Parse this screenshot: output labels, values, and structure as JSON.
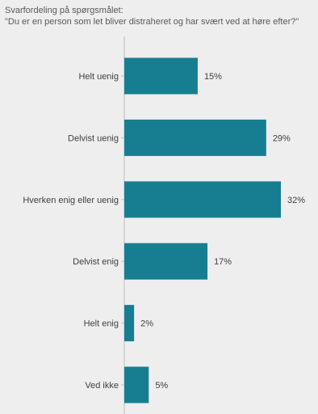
{
  "chart_data": {
    "type": "bar",
    "orientation": "horizontal",
    "title": "Svarfordeling på spørgsmålet:",
    "subtitle": "\"Du er en person som let bliver distraheret og har svært ved at høre efter?\"",
    "xlabel": "",
    "ylabel": "",
    "categories": [
      "Helt uenig",
      "Delvist uenig",
      "Hverken enig eller uenig",
      "Delvist enig",
      "Helt enig",
      "Ved ikke"
    ],
    "values": [
      15,
      29,
      32,
      17,
      2,
      5
    ],
    "value_labels": [
      "15%",
      "29%",
      "32%",
      "17%",
      "2%",
      "5%"
    ],
    "unit": "%",
    "xlim": [
      0,
      32
    ],
    "grid": false,
    "legend": "none",
    "bar_color": "#177e92",
    "axis_color": "#bfbfbf"
  }
}
